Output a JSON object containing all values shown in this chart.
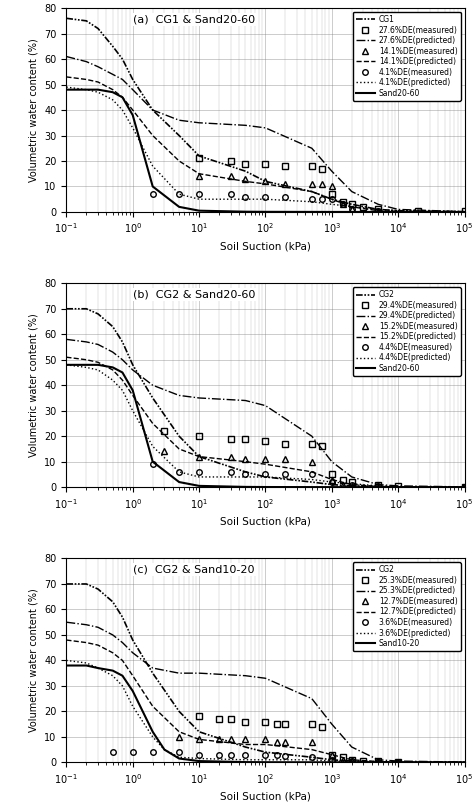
{
  "panels": [
    {
      "title": "(a)  CG1 & Sand20-60",
      "cg_label": "CG1",
      "sand_label": "Sand20-60",
      "de1": "27.6%DE",
      "de2": "14.1%DE",
      "de3": "4.1%DE",
      "cg_curve": {
        "x": [
          0.1,
          0.2,
          0.3,
          0.5,
          0.7,
          1.0,
          2.0,
          5.0,
          10,
          50,
          100,
          500,
          1000,
          2000,
          5000,
          10000,
          100000
        ],
        "y": [
          76,
          75,
          72,
          65,
          60,
          52,
          40,
          30,
          22,
          16,
          12,
          8,
          5,
          3,
          1,
          0.5,
          0.1
        ]
      },
      "sand_curve": {
        "x": [
          0.1,
          0.3,
          0.5,
          0.7,
          1.0,
          2.0,
          5.0,
          10,
          50,
          100,
          500,
          1000,
          5000,
          100000
        ],
        "y": [
          48,
          48,
          47,
          45,
          38,
          10,
          2,
          0.5,
          0.1,
          0.05,
          0.02,
          0.01,
          0.005,
          0.001
        ]
      },
      "de1_pred": {
        "x": [
          0.1,
          0.2,
          0.3,
          0.5,
          0.7,
          1.0,
          2.0,
          5.0,
          10,
          50,
          100,
          500,
          1000,
          2000,
          5000,
          10000,
          100000
        ],
        "y": [
          61,
          59,
          57,
          54,
          52,
          48,
          40,
          36,
          35,
          34,
          33,
          25,
          16,
          8,
          3,
          1,
          0.1
        ]
      },
      "de1_meas": {
        "x": [
          10,
          30,
          50,
          100,
          200,
          500,
          700,
          1000,
          1500,
          2000,
          3000,
          5000,
          20000,
          100000
        ],
        "y": [
          21,
          20,
          19,
          19,
          18,
          18,
          17,
          7,
          4,
          3,
          2,
          1,
          0.5,
          0.5
        ]
      },
      "de2_pred": {
        "x": [
          0.1,
          0.2,
          0.3,
          0.5,
          0.7,
          1.0,
          2.0,
          5.0,
          10,
          50,
          100,
          500,
          1000,
          2000,
          5000,
          10000,
          100000
        ],
        "y": [
          53,
          52,
          51,
          48,
          45,
          40,
          30,
          20,
          15,
          12,
          11,
          8,
          5,
          2,
          0.5,
          0.1,
          0.01
        ]
      },
      "de2_meas": {
        "x": [
          10,
          30,
          50,
          100,
          200,
          500,
          700,
          1000,
          1500,
          2000,
          5000
        ],
        "y": [
          14,
          14,
          13,
          12,
          11,
          11,
          11,
          10,
          3,
          1,
          0.5
        ]
      },
      "de3_pred": {
        "x": [
          0.1,
          0.2,
          0.3,
          0.5,
          0.7,
          1.0,
          2.0,
          5.0,
          10,
          50,
          100,
          500,
          1000,
          5000,
          10000,
          100000
        ],
        "y": [
          49,
          48,
          47,
          44,
          40,
          33,
          18,
          7,
          5,
          5,
          5,
          4,
          3,
          1,
          0.5,
          0.1
        ]
      },
      "de3_meas": {
        "x": [
          2,
          5,
          10,
          30,
          50,
          100,
          200,
          500,
          700,
          1000,
          1500,
          2000,
          5000
        ],
        "y": [
          7,
          7,
          7,
          7,
          6,
          6,
          6,
          5,
          5,
          5,
          3,
          1,
          0.5
        ]
      }
    },
    {
      "title": "(b)  CG2 & Sand20-60",
      "cg_label": "CG2",
      "sand_label": "Sand20-60",
      "de1": "29.4%DE",
      "de2": "15.2%DE",
      "de3": "4.4%DE",
      "cg_curve": {
        "x": [
          0.1,
          0.2,
          0.3,
          0.5,
          0.7,
          1.0,
          2.0,
          5.0,
          10,
          50,
          100,
          500,
          1000,
          2000,
          5000,
          10000,
          100000
        ],
        "y": [
          70,
          70,
          68,
          63,
          57,
          48,
          35,
          20,
          12,
          6,
          4,
          2,
          1,
          0.5,
          0.2,
          0.1,
          0.01
        ]
      },
      "sand_curve": {
        "x": [
          0.1,
          0.3,
          0.5,
          0.7,
          1.0,
          2.0,
          5.0,
          10,
          50,
          100,
          500,
          1000,
          5000,
          100000
        ],
        "y": [
          48,
          48,
          47,
          45,
          38,
          10,
          2,
          0.5,
          0.1,
          0.05,
          0.02,
          0.01,
          0.005,
          0.001
        ]
      },
      "de1_pred": {
        "x": [
          0.1,
          0.2,
          0.3,
          0.5,
          0.7,
          1.0,
          2.0,
          5.0,
          10,
          50,
          100,
          500,
          1000,
          2000,
          5000,
          10000,
          100000
        ],
        "y": [
          58,
          57,
          56,
          53,
          50,
          46,
          40,
          36,
          35,
          34,
          32,
          20,
          10,
          4,
          1,
          0.5,
          0.1
        ]
      },
      "de1_meas": {
        "x": [
          3,
          10,
          30,
          50,
          100,
          200,
          500,
          700,
          1000,
          1500,
          2000,
          5000,
          10000,
          100000
        ],
        "y": [
          22,
          20,
          19,
          19,
          18,
          17,
          17,
          16,
          5,
          3,
          2,
          1,
          0.5,
          0.2
        ]
      },
      "de2_pred": {
        "x": [
          0.1,
          0.2,
          0.3,
          0.5,
          0.7,
          1.0,
          2.0,
          5.0,
          10,
          50,
          100,
          500,
          1000,
          2000,
          5000,
          10000,
          100000
        ],
        "y": [
          51,
          50,
          49,
          46,
          42,
          36,
          25,
          15,
          12,
          10,
          9,
          6,
          3,
          1,
          0.3,
          0.1,
          0.01
        ]
      },
      "de2_meas": {
        "x": [
          3,
          10,
          30,
          50,
          100,
          200,
          500,
          1000,
          1500,
          2000,
          5000,
          100000
        ],
        "y": [
          14,
          12,
          12,
          11,
          11,
          11,
          10,
          3,
          1,
          0.5,
          0.2,
          0.1
        ]
      },
      "de3_pred": {
        "x": [
          0.1,
          0.2,
          0.3,
          0.5,
          0.7,
          1.0,
          2.0,
          5.0,
          10,
          50,
          100,
          500,
          1000,
          5000,
          10000,
          100000
        ],
        "y": [
          48,
          47,
          46,
          42,
          38,
          30,
          16,
          6,
          4,
          4,
          4,
          3,
          2,
          0.5,
          0.2,
          0.05
        ]
      },
      "de3_meas": {
        "x": [
          2,
          5,
          10,
          30,
          50,
          100,
          200,
          500,
          1000,
          2000,
          5000,
          100000
        ],
        "y": [
          9,
          6,
          6,
          6,
          5,
          5,
          5,
          5,
          2,
          1,
          0.3,
          0.1
        ]
      }
    },
    {
      "title": "(c)  CG2 & Sand10-20",
      "cg_label": "CG2",
      "sand_label": "Sand10-20",
      "de1": "25.3%DE",
      "de2": "12.7%DE",
      "de3": "3.6%DE",
      "cg_curve": {
        "x": [
          0.1,
          0.2,
          0.3,
          0.5,
          0.7,
          1.0,
          2.0,
          5.0,
          10,
          50,
          100,
          500,
          1000,
          2000,
          5000,
          10000,
          100000
        ],
        "y": [
          70,
          70,
          68,
          63,
          57,
          48,
          35,
          20,
          12,
          6,
          4,
          2,
          1,
          0.5,
          0.2,
          0.1,
          0.01
        ]
      },
      "sand_curve": {
        "x": [
          0.1,
          0.2,
          0.3,
          0.5,
          0.7,
          1.0,
          2.0,
          3.0,
          5.0,
          10,
          50,
          100,
          500,
          1000,
          5000,
          100000
        ],
        "y": [
          38,
          38,
          37,
          36,
          34,
          28,
          12,
          5,
          1.5,
          0.5,
          0.1,
          0.05,
          0.02,
          0.01,
          0.005,
          0.001
        ]
      },
      "de1_pred": {
        "x": [
          0.1,
          0.2,
          0.3,
          0.5,
          0.7,
          1.0,
          2.0,
          5.0,
          10,
          50,
          100,
          500,
          1000,
          2000,
          5000,
          10000,
          100000
        ],
        "y": [
          55,
          54,
          53,
          50,
          47,
          43,
          37,
          35,
          35,
          34,
          33,
          25,
          15,
          6,
          1,
          0.5,
          0.1
        ]
      },
      "de1_meas": {
        "x": [
          10,
          20,
          30,
          50,
          100,
          150,
          200,
          500,
          700,
          1000,
          1500,
          2000,
          3000,
          5000,
          10000
        ],
        "y": [
          18,
          17,
          17,
          16,
          16,
          15,
          15,
          15,
          14,
          3,
          2,
          1,
          0.5,
          0.5,
          0.2
        ]
      },
      "de2_pred": {
        "x": [
          0.1,
          0.2,
          0.3,
          0.5,
          0.7,
          1.0,
          2.0,
          5.0,
          10,
          50,
          100,
          500,
          1000,
          2000,
          5000,
          10000,
          100000
        ],
        "y": [
          48,
          47,
          46,
          43,
          40,
          34,
          22,
          12,
          9,
          7,
          7,
          5,
          3,
          1,
          0.3,
          0.1,
          0.01
        ]
      },
      "de2_meas": {
        "x": [
          5,
          10,
          20,
          30,
          50,
          100,
          150,
          200,
          500,
          1000,
          1500,
          2000,
          5000,
          10000
        ],
        "y": [
          10,
          9,
          9,
          9,
          9,
          9,
          8,
          8,
          8,
          3,
          1,
          0.5,
          0.2,
          0.1
        ]
      },
      "de3_pred": {
        "x": [
          0.1,
          0.2,
          0.3,
          0.5,
          0.7,
          1.0,
          2.0,
          3.0,
          5.0,
          10,
          50,
          100,
          500,
          1000,
          5000,
          10000,
          100000
        ],
        "y": [
          40,
          39,
          37,
          34,
          30,
          22,
          10,
          5,
          2,
          1.5,
          1,
          1,
          1,
          0.5,
          0.2,
          0.1,
          0.05
        ]
      },
      "de3_meas": {
        "x": [
          0.5,
          1,
          2,
          5,
          10,
          20,
          30,
          50,
          100,
          150,
          200,
          500,
          1000,
          2000,
          5000,
          10000
        ],
        "y": [
          4,
          4,
          4,
          4,
          3,
          3,
          3,
          3,
          3,
          3,
          2.5,
          2,
          1,
          0.5,
          0.2,
          0.1
        ]
      }
    }
  ],
  "xlim": [
    0.1,
    100000
  ],
  "ylim": [
    0,
    80
  ],
  "yticks": [
    0,
    10,
    20,
    30,
    40,
    50,
    60,
    70,
    80
  ],
  "xlabel": "Soil Suction (kPa)",
  "ylabel": "Volumetric water content (%)"
}
